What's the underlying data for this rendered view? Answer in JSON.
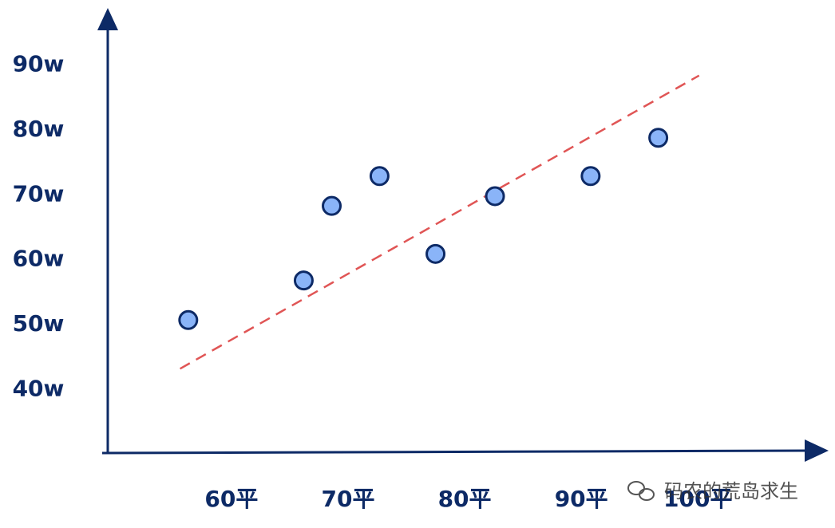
{
  "chart_data": {
    "type": "scatter",
    "x": [
      56.3,
      66.2,
      68.6,
      72.7,
      77.5,
      82.6,
      90.8,
      96.6
    ],
    "y": [
      50.7,
      56.8,
      68.3,
      72.9,
      60.9,
      69.8,
      72.9,
      78.8
    ],
    "color": "#8ab4f8",
    "trend_line": {
      "x": [
        55.6,
        100.1
      ],
      "y": [
        43.2,
        88.4
      ],
      "color": "#e05555"
    },
    "xlim": [
      49.4,
      111
    ],
    "ylim": [
      30.2,
      98.2
    ],
    "xticks": [
      {
        "value": 60,
        "label": "60平"
      },
      {
        "value": 70,
        "label": "70平"
      },
      {
        "value": 80,
        "label": "80平"
      },
      {
        "value": 90,
        "label": "90平"
      },
      {
        "value": 100,
        "label": "100平"
      }
    ],
    "yticks": [
      {
        "value": 40,
        "label": "40w"
      },
      {
        "value": 50,
        "label": "50w"
      },
      {
        "value": 60,
        "label": "60w"
      },
      {
        "value": 70,
        "label": "70w"
      },
      {
        "value": 80,
        "label": "80w"
      },
      {
        "value": 90,
        "label": "90w"
      }
    ],
    "grid": false,
    "watermark": "码农的荒岛求生"
  }
}
